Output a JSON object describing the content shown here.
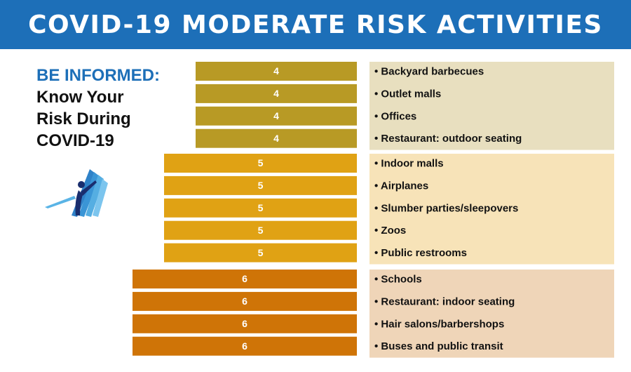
{
  "header": {
    "title": "COVID-19 MODERATE RISK ACTIVITIES"
  },
  "intro": {
    "heading": "BE INFORMED:",
    "lines": [
      "Know Your",
      "Risk During",
      "COVID-19"
    ]
  },
  "logo": {
    "icon": "person-with-book-logo-icon"
  },
  "colors": {
    "banner": "#1d6fb8",
    "heading": "#1d6fb8",
    "level_4_bar": "#b89a25",
    "level_4_panel": "#e8dfbf",
    "level_5_bar": "#e0a214",
    "level_5_panel": "#f7e3b8",
    "level_6_bar": "#cf7407",
    "level_6_panel": "#efd5b8"
  },
  "chart_data": {
    "type": "bar",
    "orientation": "horizontal",
    "groups": [
      {
        "risk": 4,
        "activities": [
          "Backyard barbecues",
          "Outlet malls",
          "Offices",
          "Restaurant: outdoor seating"
        ]
      },
      {
        "risk": 5,
        "activities": [
          "Indoor malls",
          "Airplanes",
          "Slumber parties/sleepovers",
          "Zoos",
          "Public restrooms"
        ]
      },
      {
        "risk": 6,
        "activities": [
          "Schools",
          "Restaurant: indoor seating",
          "Hair salons/barbershops",
          "Buses and public transit"
        ]
      }
    ],
    "grid": false,
    "legend": "none"
  }
}
